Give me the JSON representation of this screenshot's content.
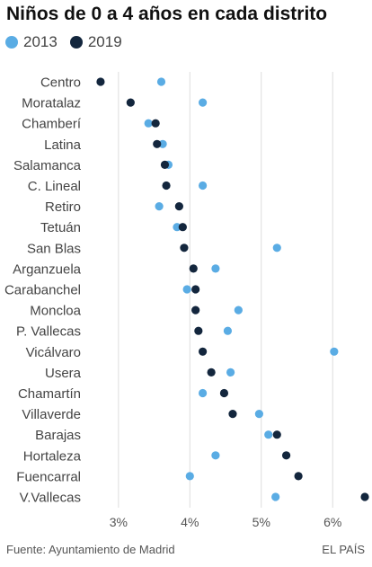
{
  "chart_data": {
    "type": "scatter",
    "title": "Niños de 0 a 4 años en cada distrito",
    "xlim": [
      2.65,
      6.5
    ],
    "x_ticks": [
      3,
      4,
      5,
      6
    ],
    "x_tick_labels": [
      "3%",
      "4%",
      "5%",
      "6%"
    ],
    "grid": "vertical",
    "legend_position": "top-left",
    "categories": [
      "Centro",
      "Moratalaz",
      "Chamberí",
      "Latina",
      "Salamanca",
      "C. Lineal",
      "Retiro",
      "Tetuán",
      "San Blas",
      "Arganzuela",
      "Carabanchel",
      "Moncloa",
      "P. Vallecas",
      "Vicálvaro",
      "Usera",
      "Chamartín",
      "Villaverde",
      "Barajas",
      "Hortaleza",
      "Fuencarral",
      "V.Vallecas"
    ],
    "series": [
      {
        "name": "2013",
        "color": "#5aace4",
        "values": [
          3.6,
          4.18,
          3.42,
          3.62,
          3.7,
          4.18,
          3.57,
          3.82,
          5.22,
          4.36,
          3.96,
          4.68,
          4.53,
          6.02,
          4.57,
          4.18,
          4.97,
          5.1,
          4.36,
          4.0,
          5.2
        ]
      },
      {
        "name": "2019",
        "color": "#13263d",
        "values": [
          2.75,
          3.17,
          3.52,
          3.54,
          3.65,
          3.67,
          3.85,
          3.9,
          3.92,
          4.05,
          4.08,
          4.08,
          4.12,
          4.18,
          4.3,
          4.48,
          4.6,
          5.22,
          5.35,
          5.52,
          6.45
        ]
      }
    ]
  },
  "legend": [
    {
      "label": "2013",
      "color": "#5aace4"
    },
    {
      "label": "2019",
      "color": "#13263d"
    }
  ],
  "footer": {
    "source": "Fuente: Ayuntamiento de Madrid",
    "brand": "EL PAÍS"
  }
}
